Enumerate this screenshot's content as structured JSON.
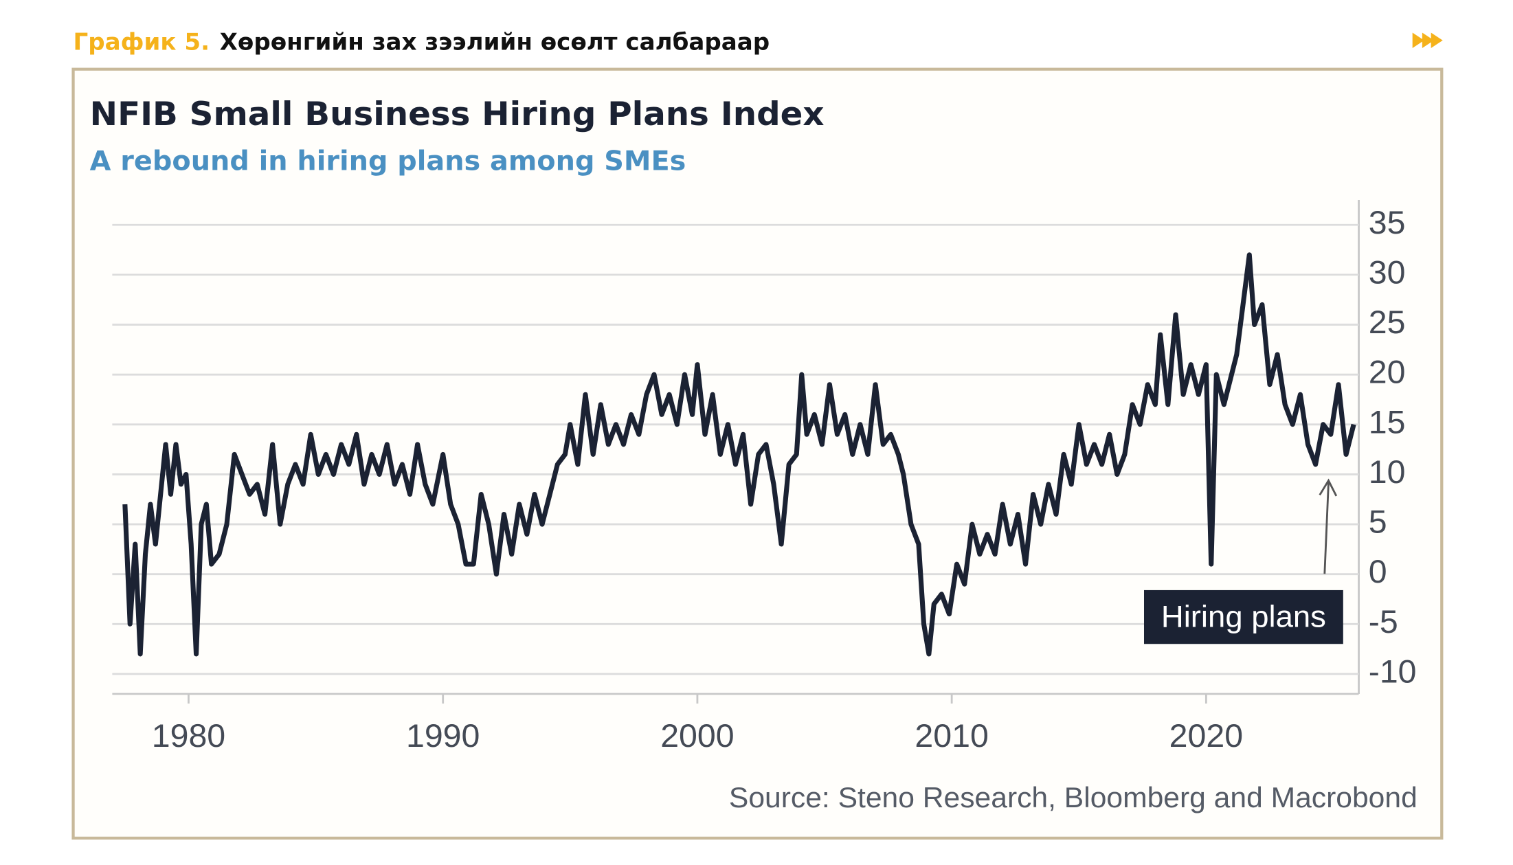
{
  "header": {
    "label": "График 5.",
    "title": "Хөрөнгийн зах зээлийн өсөлт салбараар"
  },
  "chart_data": {
    "type": "line",
    "title": "NFIB Small Business Hiring Plans Index",
    "subtitle": "A rebound in hiring plans among SMEs",
    "source": "Source: Steno Research, Bloomberg and Macrobond",
    "x": [
      1977.5,
      1977.7,
      1977.9,
      1978.1,
      1978.3,
      1978.5,
      1978.7,
      1978.9,
      1979.1,
      1979.3,
      1979.5,
      1979.7,
      1979.9,
      1980.1,
      1980.3,
      1980.5,
      1980.7,
      1980.9,
      1981.2,
      1981.5,
      1981.8,
      1982.1,
      1982.4,
      1982.7,
      1983.0,
      1983.3,
      1983.6,
      1983.9,
      1984.2,
      1984.5,
      1984.8,
      1985.1,
      1985.4,
      1985.7,
      1986.0,
      1986.3,
      1986.6,
      1986.9,
      1987.2,
      1987.5,
      1987.8,
      1988.1,
      1988.4,
      1988.7,
      1989.0,
      1989.3,
      1989.6,
      1990.0,
      1990.3,
      1990.6,
      1990.9,
      1991.2,
      1991.5,
      1991.8,
      1992.1,
      1992.4,
      1992.7,
      1993.0,
      1993.3,
      1993.6,
      1993.9,
      1994.2,
      1994.5,
      1994.8,
      1995.0,
      1995.3,
      1995.6,
      1995.9,
      1996.2,
      1996.5,
      1996.8,
      1997.1,
      1997.4,
      1997.7,
      1998.0,
      1998.3,
      1998.6,
      1998.9,
      1999.2,
      1999.5,
      1999.8,
      2000.0,
      2000.3,
      2000.6,
      2000.9,
      2001.2,
      2001.5,
      2001.8,
      2002.1,
      2002.4,
      2002.7,
      2003.0,
      2003.3,
      2003.6,
      2003.9,
      2004.1,
      2004.3,
      2004.6,
      2004.9,
      2005.2,
      2005.5,
      2005.8,
      2006.1,
      2006.4,
      2006.7,
      2007.0,
      2007.3,
      2007.6,
      2007.9,
      2008.1,
      2008.4,
      2008.7,
      2008.9,
      2009.1,
      2009.3,
      2009.6,
      2009.9,
      2010.2,
      2010.5,
      2010.8,
      2011.1,
      2011.4,
      2011.7,
      2012.0,
      2012.3,
      2012.6,
      2012.9,
      2013.2,
      2013.5,
      2013.8,
      2014.1,
      2014.4,
      2014.7,
      2015.0,
      2015.3,
      2015.6,
      2015.9,
      2016.2,
      2016.5,
      2016.8,
      2017.1,
      2017.4,
      2017.7,
      2018.0,
      2018.2,
      2018.5,
      2018.8,
      2019.1,
      2019.4,
      2019.7,
      2020.0,
      2020.2,
      2020.4,
      2020.7,
      2021.0,
      2021.2,
      2021.5,
      2021.7,
      2021.9,
      2022.2,
      2022.5,
      2022.8,
      2023.1,
      2023.4,
      2023.7,
      2024.0,
      2024.3,
      2024.6,
      2024.9,
      2025.2,
      2025.5,
      2025.8
    ],
    "series": [
      {
        "name": "Hiring plans",
        "color": "#1b2233",
        "values": [
          7,
          -5,
          3,
          -8,
          2,
          7,
          3,
          8,
          13,
          8,
          13,
          9,
          10,
          3,
          -8,
          5,
          7,
          1,
          2,
          5,
          12,
          10,
          8,
          9,
          6,
          13,
          5,
          9,
          11,
          9,
          14,
          10,
          12,
          10,
          13,
          11,
          14,
          9,
          12,
          10,
          13,
          9,
          11,
          8,
          13,
          9,
          7,
          12,
          7,
          5,
          1,
          1,
          8,
          5,
          0,
          6,
          2,
          7,
          4,
          8,
          5,
          8,
          11,
          12,
          15,
          11,
          18,
          12,
          17,
          13,
          15,
          13,
          16,
          14,
          18,
          20,
          16,
          18,
          15,
          20,
          16,
          21,
          14,
          18,
          12,
          15,
          11,
          14,
          7,
          12,
          13,
          9,
          3,
          11,
          12,
          20,
          14,
          16,
          13,
          19,
          14,
          16,
          12,
          15,
          12,
          19,
          13,
          14,
          12,
          10,
          5,
          3,
          -5,
          -8,
          -3,
          -2,
          -4,
          1,
          -1,
          5,
          2,
          4,
          2,
          7,
          3,
          6,
          1,
          8,
          5,
          9,
          6,
          12,
          9,
          15,
          11,
          13,
          11,
          14,
          10,
          12,
          17,
          15,
          19,
          17,
          24,
          17,
          26,
          18,
          21,
          18,
          21,
          1,
          20,
          17,
          20,
          22,
          28,
          32,
          25,
          27,
          19,
          22,
          17,
          15,
          18,
          13,
          11,
          15,
          14,
          19,
          12,
          15
        ]
      }
    ],
    "xlim": [
      1977,
      2026
    ],
    "ylim": [
      -12,
      37.5
    ],
    "xticks": [
      1980,
      1990,
      2000,
      2010,
      2020
    ],
    "yticks": [
      -10,
      -5,
      0,
      5,
      10,
      15,
      20,
      25,
      30,
      35
    ],
    "grid": true
  }
}
